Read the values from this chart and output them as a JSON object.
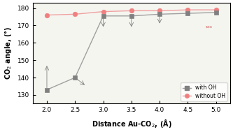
{
  "with_oh_x": [
    2.0,
    2.5,
    3.0,
    3.5,
    4.0,
    4.5,
    5.0
  ],
  "with_oh_y": [
    133.0,
    140.0,
    175.5,
    175.5,
    176.5,
    177.0,
    177.5
  ],
  "without_oh_x": [
    2.0,
    2.5,
    3.0,
    3.5,
    4.0,
    4.5,
    5.0
  ],
  "without_oh_y": [
    176.0,
    176.5,
    178.0,
    178.5,
    178.5,
    179.0,
    179.0
  ],
  "with_oh_color": "#808080",
  "without_oh_color": "#f08080",
  "xlabel": "Distance Au-CO$_2$, (Å)",
  "ylabel": "CO$_2$ angle, (°)",
  "xlim": [
    1.75,
    5.25
  ],
  "ylim": [
    125,
    183
  ],
  "yticks": [
    130,
    140,
    150,
    160,
    170,
    180
  ],
  "xticks": [
    2.0,
    2.5,
    3.0,
    3.5,
    4.0,
    4.5,
    5.0
  ],
  "legend_with_oh": "with OH",
  "legend_without_oh": "without OH",
  "background_color": "#f5f5f0",
  "line_color_with_oh": "#a0a0a0",
  "line_color_without_oh": "#f0a0a0"
}
